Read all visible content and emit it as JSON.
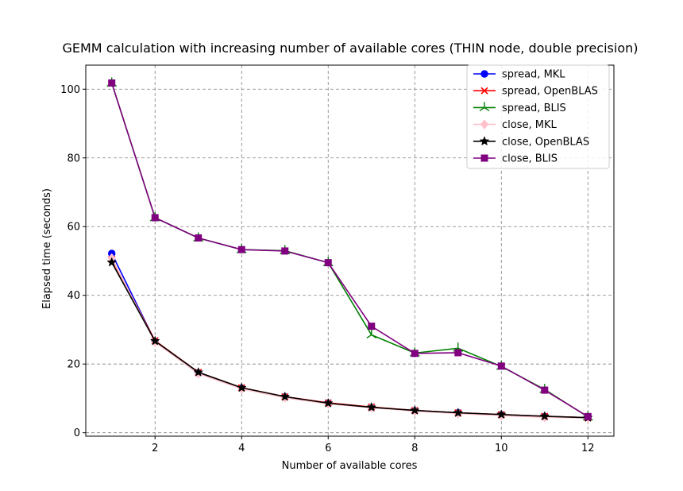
{
  "chart_data": {
    "type": "line",
    "title": "GEMM calculation with increasing number of available cores (THIN node, double precision)",
    "xlabel": "Number of available cores",
    "ylabel": "Elapsed time (seconds)",
    "xlim": [
      0.4,
      12.6
    ],
    "ylim": [
      -1,
      107
    ],
    "xticks": [
      2,
      4,
      6,
      8,
      10,
      12
    ],
    "yticks": [
      0,
      20,
      40,
      60,
      80,
      100
    ],
    "grid": true,
    "legend_position": "top-right",
    "x": [
      1,
      2,
      3,
      4,
      5,
      6,
      7,
      8,
      9,
      10,
      11,
      12
    ],
    "series": [
      {
        "name": "spread, MKL",
        "color": "#0000ff",
        "marker": "circle",
        "values": [
          52.2,
          26.6,
          17.4,
          13.0,
          10.4,
          8.6,
          7.4,
          6.4,
          5.8,
          5.2,
          4.7,
          4.4
        ]
      },
      {
        "name": "spread, OpenBLAS",
        "color": "#ff0000",
        "marker": "x",
        "values": [
          50.5,
          26.8,
          17.6,
          13.1,
          10.5,
          8.7,
          7.5,
          6.5,
          5.8,
          5.3,
          4.8,
          4.4
        ]
      },
      {
        "name": "spread, BLIS",
        "color": "#008000",
        "marker": "tri",
        "values": [
          101.8,
          62.6,
          56.7,
          53.3,
          53.0,
          49.5,
          28.5,
          23.2,
          24.6,
          19.3,
          12.6,
          4.6
        ]
      },
      {
        "name": "close, MKL",
        "color": "#ffc0cb",
        "marker": "diamond",
        "values": [
          50.8,
          26.4,
          17.2,
          12.8,
          10.2,
          8.4,
          7.3,
          6.3,
          5.6,
          5.0,
          4.5,
          4.3
        ]
      },
      {
        "name": "close, OpenBLAS",
        "color": "#000000",
        "marker": "star",
        "values": [
          49.6,
          26.7,
          17.6,
          13.1,
          10.5,
          8.6,
          7.4,
          6.5,
          5.8,
          5.3,
          4.8,
          4.4
        ]
      },
      {
        "name": "close, BLIS",
        "color": "#800080",
        "marker": "square",
        "values": [
          101.8,
          62.6,
          56.7,
          53.3,
          52.9,
          49.5,
          31.0,
          23.1,
          23.3,
          19.4,
          12.4,
          4.7
        ]
      }
    ]
  }
}
